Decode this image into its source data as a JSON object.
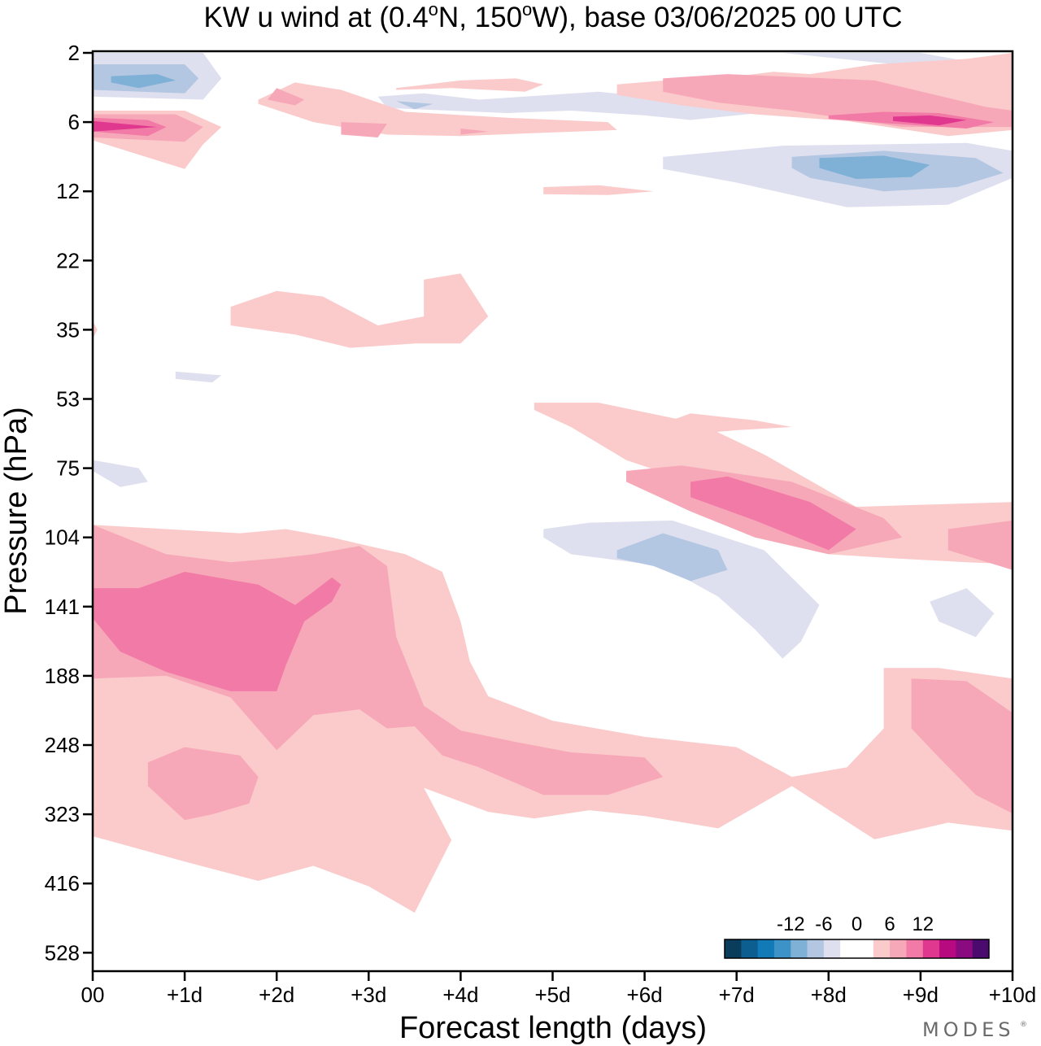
{
  "chart_data": {
    "type": "heatmap",
    "title": "KW u wind at (0.4°N, 150°W),  base 03/06/2025  00 UTC",
    "title_parts": {
      "pre": "KW u wind at (0.4",
      "deg1": "o",
      "mid": "N, 150",
      "deg2": "o",
      "post": "W),  base 03/06/2025  00 UTC"
    },
    "xlabel": "Forecast length (days)",
    "ylabel": "Pressure (hPa)",
    "x_ticks": [
      "00",
      "+1d",
      "+2d",
      "+3d",
      "+4d",
      "+5d",
      "+6d",
      "+7d",
      "+8d",
      "+9d",
      "+10d"
    ],
    "y_ticks": [
      "2",
      "6",
      "12",
      "22",
      "35",
      "53",
      "75",
      "104",
      "141",
      "188",
      "248",
      "323",
      "416",
      "528"
    ],
    "xlim": [
      0,
      10
    ],
    "colorbar": {
      "labels": [
        "-12",
        "-6",
        "0",
        "6",
        "12"
      ],
      "label_values": [
        -12,
        -6,
        0,
        6,
        12
      ],
      "levels": [
        -15,
        -13.5,
        -12,
        -10.5,
        -9,
        -7.5,
        -6,
        -4.5,
        -3,
        -1.5,
        1.5,
        3,
        4.5,
        6,
        7.5,
        9,
        10.5,
        12
      ],
      "colors": [
        "#0a3d5c",
        "#0b5e8f",
        "#137ab8",
        "#3d93c8",
        "#7fb0d6",
        "#b3c6e2",
        "#dfe0ef",
        "#ffffff",
        "#ffffff",
        "#fbcaca",
        "#f7a8b8",
        "#f27aa6",
        "#e0388f",
        "#b80a80",
        "#8a0a80",
        "#4a0a6e"
      ]
    },
    "contours": [
      {
        "level": "neg-weak",
        "color": "#dfe0ef",
        "regions": [
          {
            "x": [
              0.0,
              1.2,
              1.4,
              1.2,
              0.0
            ],
            "p": [
              2,
              2,
              3,
              4.2,
              4
            ]
          },
          {
            "x": [
              3.1,
              3.6,
              4.2,
              5.5,
              7.5,
              6.5,
              6.0,
              5.2,
              4.5,
              3.2
            ],
            "p": [
              4,
              3.8,
              4.2,
              3.7,
              5,
              5.8,
              5.4,
              5.0,
              5.2,
              4.8
            ]
          },
          {
            "x": [
              6.2,
              7.5,
              9.5,
              10.0,
              10.0,
              9.3,
              8.2,
              7.0,
              6.2
            ],
            "p": [
              8.5,
              7.6,
              7.4,
              8,
              10.5,
              13.5,
              13.8,
              11,
              9.6
            ]
          },
          {
            "x": [
              7.5,
              9.0,
              10.0,
              10.0,
              9.0
            ],
            "p": [
              2,
              2,
              2.6,
              3.2,
              2.5
            ]
          },
          {
            "x": [
              0.9,
              1.4,
              1.3,
              0.9
            ],
            "p": [
              45,
              46,
              48,
              47
            ]
          },
          {
            "x": [
              0.0,
              0.5,
              0.6,
              0.3,
              0.0
            ],
            "p": [
              72,
              75,
              80,
              82,
              76
            ]
          },
          {
            "x": [
              4.9,
              5.4,
              6.3,
              7.3,
              7.9,
              7.7,
              7.5,
              7.2,
              6.8,
              6.2,
              5.2,
              4.9
            ],
            "p": [
              100,
              97,
              96,
              110,
              140,
              163,
              175,
              155,
              135,
              118,
              112,
              104
            ]
          },
          {
            "x": [
              9.1,
              9.5,
              9.8,
              9.6,
              9.2
            ],
            "p": [
              138,
              130,
              145,
              160,
              150
            ]
          }
        ]
      },
      {
        "level": "neg-mid",
        "color": "#b3c6e2",
        "regions": [
          {
            "x": [
              0.0,
              1.0,
              1.15,
              1.0,
              0.0
            ],
            "p": [
              2.4,
              2.4,
              3,
              3.8,
              3.6
            ]
          },
          {
            "x": [
              3.3,
              3.7,
              3.5
            ],
            "p": [
              4.3,
              4.5,
              4.9
            ]
          },
          {
            "x": [
              8.6,
              9.4,
              10.0,
              10.0,
              9.0,
              8.6
            ],
            "p": [
              2.6,
              2.7,
              3.3,
              4.3,
              3.8,
              3.3
            ]
          },
          {
            "x": [
              7.6,
              8.6,
              9.6,
              9.9,
              9.4,
              8.6,
              7.8,
              7.6
            ],
            "p": [
              8.5,
              8,
              8.6,
              10,
              11.5,
              12,
              10.5,
              9.5
            ]
          },
          {
            "x": [
              5.7,
              6.2,
              6.8,
              6.9,
              6.5,
              6.1,
              5.7
            ],
            "p": [
              110,
              102,
              110,
              120,
              126,
              118,
              114
            ]
          }
        ]
      },
      {
        "level": "neg-strong",
        "color": "#7fb0d6",
        "regions": [
          {
            "x": [
              0.2,
              0.7,
              0.9,
              0.5,
              0.2
            ],
            "p": [
              2.9,
              2.8,
              3.1,
              3.5,
              3.2
            ]
          },
          {
            "x": [
              8.9,
              9.4,
              9.8,
              9.5,
              9.0
            ],
            "p": [
              3.0,
              3.0,
              3.4,
              3.7,
              3.4
            ]
          },
          {
            "x": [
              7.9,
              8.6,
              9.1,
              8.9,
              8.3,
              7.9
            ],
            "p": [
              8.6,
              8.4,
              9.2,
              10.4,
              10.6,
              9.5
            ]
          }
        ]
      },
      {
        "level": "pos-weak",
        "color": "#fbcaca",
        "regions": [
          {
            "x": [
              0.0,
              1.0,
              1.4,
              1.2,
              1.0,
              0.0
            ],
            "p": [
              5.0,
              5.0,
              6.3,
              7.5,
              9.6,
              7.2
            ]
          },
          {
            "x": [
              1.8,
              2.2,
              2.7,
              3.4,
              4.5,
              5.6,
              5.7,
              4.8,
              4.0,
              3.2,
              2.4,
              1.8
            ],
            "p": [
              4.2,
              3.2,
              3.6,
              5.1,
              5.6,
              6,
              6.5,
              6.7,
              6.9,
              6.8,
              6.0,
              4.5
            ]
          },
          {
            "x": [
              3.3,
              4.0,
              4.6,
              4.9,
              4.7,
              3.9,
              3.3
            ],
            "p": [
              3.5,
              3.1,
              3.0,
              3.3,
              3.7,
              3.5,
              3.6
            ]
          },
          {
            "x": [
              5.7,
              6.5,
              7.0,
              7.4,
              7.8,
              8.5,
              9.5,
              10.0,
              10.0,
              9.3,
              8.2,
              7.2,
              6.4,
              5.7
            ],
            "p": [
              3.3,
              3.0,
              2.9,
              2.7,
              2.8,
              2.4,
              2.2,
              2,
              6.5,
              6.9,
              5.9,
              5.3,
              4.6,
              3.9
            ]
          },
          {
            "x": [
              4.9,
              5.5,
              6.1,
              5.6,
              4.9
            ],
            "p": [
              11.5,
              11.3,
              12,
              12.4,
              12.3
            ]
          },
          {
            "x": [
              1.5,
              2.0,
              2.5,
              3.1,
              3.6,
              3.6,
              4.0,
              4.3,
              4.0,
              3.5,
              2.8,
              2.2,
              1.5
            ],
            "p": [
              30,
              27,
              28,
              34,
              32,
              25,
              24,
              32,
              38,
              38,
              39,
              36,
              34
            ]
          },
          {
            "x": [
              4.8,
              5.5,
              6.6,
              7.3,
              8.3,
              10.0,
              10.0,
              9.5,
              8.7,
              8.0,
              7.2,
              6.5,
              5.8,
              5.2,
              4.8
            ],
            "p": [
              54,
              54,
              60,
              70,
              90,
              88,
              117,
              116,
              114,
              112,
              94,
              80,
              72,
              61,
              56
            ]
          },
          {
            "x": [
              6.0,
              6.5,
              7.2,
              7.6,
              7.0,
              6.2
            ],
            "p": [
              62,
              57,
              59,
              61,
              62,
              64
            ]
          },
          {
            "x": [
              0.0,
              0.8,
              1.6,
              2.1,
              2.6,
              3.0,
              3.4,
              3.8,
              4.0,
              4.1,
              4.3,
              5.0,
              6.0,
              7.0,
              7.6,
              8.2,
              8.6,
              8.6,
              9.2,
              10.0,
              10.0,
              9.3,
              8.5,
              7.6,
              6.8,
              6.0,
              5.4,
              4.8,
              4.3,
              3.6,
              3.9,
              3.5,
              3.0,
              2.4,
              1.8,
              1.0,
              0.0
            ],
            "p": [
              98,
              100,
              102,
              100,
              104,
              108,
              112,
              121,
              150,
              177,
              204,
              225,
              240,
              250,
              280,
              270,
              232,
              182,
              182,
              190,
              343,
              333,
              354,
              290,
              340,
              325,
              318,
              328,
              320,
              292,
              355,
              460,
              420,
              390,
              412,
              384,
              350
            ]
          },
          {
            "x": [
              0.0,
              0.05,
              0.0
            ],
            "p": [
              33,
              35,
              37
            ]
          }
        ]
      },
      {
        "level": "pos-mid",
        "color": "#f7a8b8",
        "regions": [
          {
            "x": [
              0.0,
              0.9,
              1.2,
              1.0,
              0.0
            ],
            "p": [
              5.3,
              5.3,
              6.3,
              7.3,
              7.0
            ]
          },
          {
            "x": [
              2.0,
              2.3,
              2.2,
              1.9
            ],
            "p": [
              3.5,
              4.2,
              4.6,
              4.2
            ]
          },
          {
            "x": [
              2.7,
              3.2,
              3.1,
              2.7
            ],
            "p": [
              6.0,
              6.1,
              7.0,
              6.8
            ]
          },
          {
            "x": [
              4.0,
              4.3,
              4.0
            ],
            "p": [
              6.4,
              6.6,
              6.8
            ]
          },
          {
            "x": [
              6.2,
              6.9,
              8.5,
              9.7,
              10.0,
              10.0,
              8.8,
              7.6,
              6.8,
              6.2
            ],
            "p": [
              3.0,
              2.8,
              3.1,
              4.7,
              5,
              6.3,
              6.3,
              5.0,
              4.4,
              3.7
            ]
          },
          {
            "x": [
              5.8,
              6.4,
              7.6,
              8.6,
              8.8,
              8.0,
              7.2,
              6.5,
              5.8
            ],
            "p": [
              76,
              74,
              80,
              95,
              104,
              112,
              104,
              92,
              80
            ]
          },
          {
            "x": [
              9.3,
              10.0,
              10.0,
              9.3
            ],
            "p": [
              100,
              96,
              120,
              110
            ]
          },
          {
            "x": [
              0.0,
              0.8,
              1.5,
              2.0,
              2.4,
              2.9,
              3.2,
              3.3,
              3.6,
              4.0,
              4.6,
              5.2,
              6.0,
              6.2,
              5.6,
              4.9,
              4.2,
              3.8,
              3.5,
              3.2,
              2.9,
              2.4,
              2.0,
              1.5,
              0.8,
              0.0
            ],
            "p": [
              98,
              112,
              116,
              114,
              112,
              108,
              118,
              160,
              212,
              234,
              245,
              255,
              260,
              280,
              300,
              300,
              270,
              258,
              230,
              232,
              215,
              220,
              253,
              205,
              188,
              190
            ]
          },
          {
            "x": [
              0.6,
              1.0,
              1.6,
              1.8,
              1.7,
              1.3,
              1.0,
              0.6
            ],
            "p": [
              265,
              250,
              258,
              280,
              310,
              323,
              330,
              290
            ]
          },
          {
            "x": [
              8.9,
              9.5,
              10.0,
              10.0,
              9.6,
              9.2,
              8.9
            ],
            "p": [
              190,
              192,
              218,
              322,
              300,
              260,
              232
            ]
          }
        ]
      },
      {
        "level": "pos-strong",
        "color": "#f27aa6",
        "regions": [
          {
            "x": [
              0.0,
              0.6,
              0.8,
              0.6,
              0.0
            ],
            "p": [
              5.6,
              5.8,
              6.3,
              6.9,
              6.6
            ]
          },
          {
            "x": [
              8.0,
              8.6,
              9.2,
              9.8,
              9.5,
              8.7,
              8.0
            ],
            "p": [
              5.4,
              5.1,
              5.2,
              6,
              6.4,
              6.1,
              5.7
            ]
          },
          {
            "x": [
              6.5,
              6.9,
              7.8,
              8.3,
              8.0,
              7.2,
              6.5
            ],
            "p": [
              80,
              78,
              88,
              100,
              110,
              96,
              86
            ]
          },
          {
            "x": [
              0.0,
              0.5,
              1.0,
              1.8,
              2.2,
              2.4,
              2.6,
              2.7,
              2.6,
              2.3,
              2.1,
              2.0,
              1.5,
              0.8,
              0.3,
              0.0
            ],
            "p": [
              130,
              130,
              121,
              128,
              140,
              132,
              124,
              128,
              138,
              150,
              180,
              200,
              200,
              185,
              170,
              148
            ]
          }
        ]
      },
      {
        "level": "pos-deep",
        "color": "#e0388f",
        "regions": [
          {
            "x": [
              0.0,
              0.7,
              0.0
            ],
            "p": [
              5.9,
              6.3,
              6.6
            ]
          },
          {
            "x": [
              8.7,
              9.1,
              9.5,
              9.2,
              8.7
            ],
            "p": [
              5.5,
              5.4,
              5.8,
              6.2,
              5.9
            ]
          }
        ]
      }
    ]
  }
}
